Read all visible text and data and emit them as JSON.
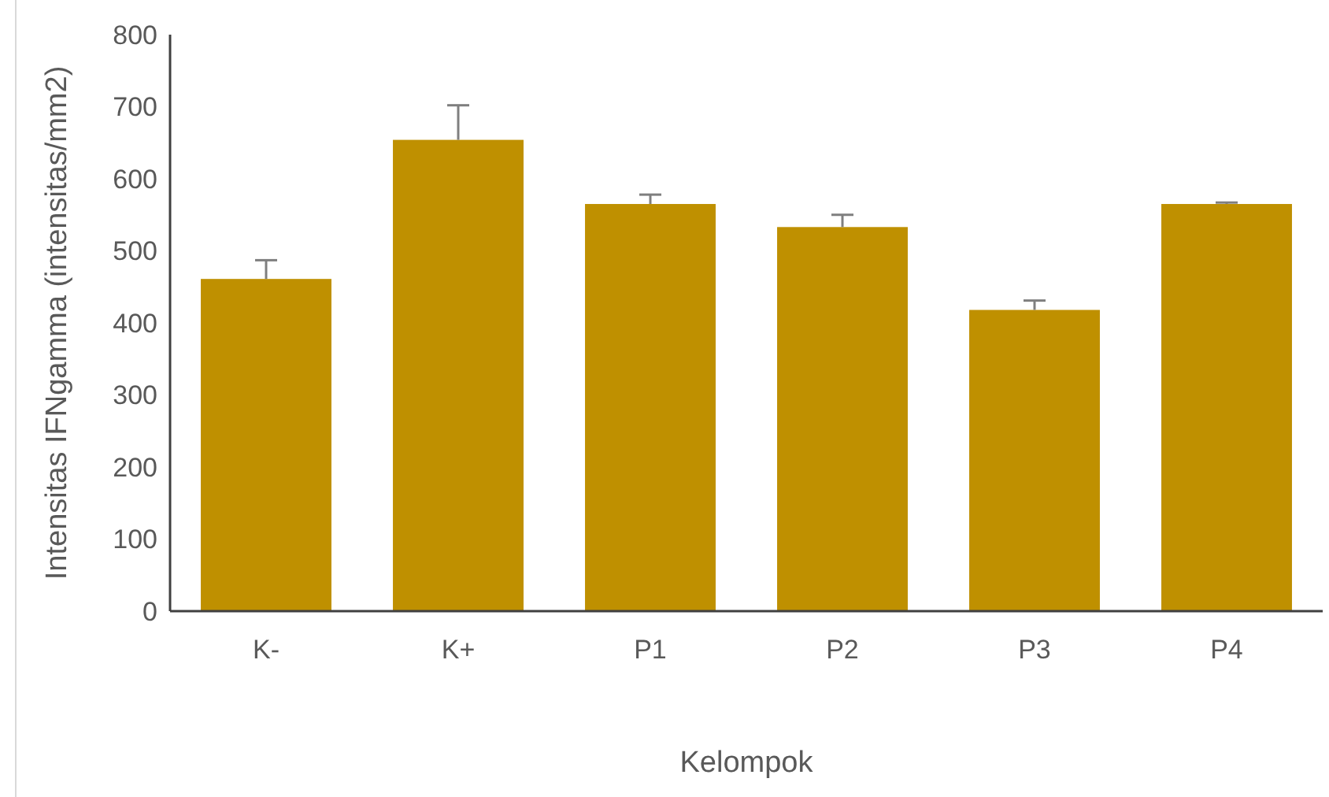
{
  "chart_data": {
    "type": "bar",
    "xlabel": "Kelompok",
    "ylabel": "Intensitas IFNgamma (intensitas/mm2)",
    "categories": [
      "K-",
      "K+",
      "P1",
      "P2",
      "P3",
      "P4"
    ],
    "values": [
      461,
      654,
      565,
      533,
      418,
      565
    ],
    "errors": [
      26,
      48,
      13,
      17,
      13,
      2
    ],
    "color": "#bf9000",
    "ylim": [
      0,
      800
    ],
    "yticks": [
      0,
      100,
      200,
      300,
      400,
      500,
      600,
      700,
      800
    ],
    "grid": false
  }
}
